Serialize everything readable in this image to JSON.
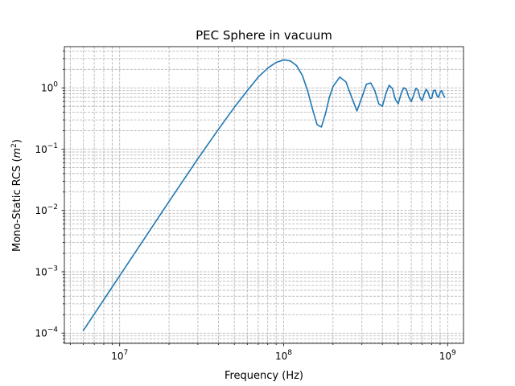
{
  "chart_data": {
    "type": "line",
    "title": "PEC Sphere in vacuum",
    "xlabel": "Frequency (Hz)",
    "ylabel_prefix": "Mono-Static RCS (",
    "ylabel_var": "m",
    "ylabel_sup": "2",
    "ylabel_suffix": ")",
    "xscale": "log",
    "yscale": "log",
    "xlim": [
      4600000.0,
      1250000000.0
    ],
    "ylim": [
      6.8e-05,
      4.7
    ],
    "grid": true,
    "colors": {
      "line": "#1f77b4",
      "grid": "#b0b0b0"
    },
    "x_tick_labels": [
      {
        "value": 10000000.0,
        "base": "10",
        "exp": "7"
      },
      {
        "value": 100000000.0,
        "base": "10",
        "exp": "8"
      },
      {
        "value": 1000000000.0,
        "base": "10",
        "exp": "9"
      }
    ],
    "y_tick_labels": [
      {
        "value": 0.0001,
        "base": "10",
        "exp": "−4"
      },
      {
        "value": 0.001,
        "base": "10",
        "exp": "−3"
      },
      {
        "value": 0.01,
        "base": "10",
        "exp": "−2"
      },
      {
        "value": 0.1,
        "base": "10",
        "exp": "−1"
      },
      {
        "value": 1,
        "base": "10",
        "exp": "0"
      }
    ],
    "series": [
      {
        "x": [
          6000000.0,
          8000000.0,
          10000000.0,
          15000000.0,
          20000000.0,
          30000000.0,
          40000000.0,
          50000000.0,
          60000000.0,
          70000000.0,
          80000000.0,
          90000000.0,
          100000000.0,
          110000000.0,
          120000000.0,
          130000000.0,
          140000000.0,
          150000000.0,
          160000000.0,
          170000000.0,
          180000000.0,
          190000000.0,
          200000000.0,
          220000000.0,
          240000000.0,
          260000000.0,
          280000000.0,
          300000000.0,
          320000000.0,
          340000000.0,
          360000000.0,
          380000000.0,
          400000000.0,
          420000000.0,
          440000000.0,
          460000000.0,
          480000000.0,
          500000000.0,
          520000000.0,
          540000000.0,
          560000000.0,
          580000000.0,
          600000000.0,
          620000000.0,
          640000000.0,
          660000000.0,
          680000000.0,
          700000000.0,
          720000000.0,
          740000000.0,
          760000000.0,
          780000000.0,
          800000000.0,
          820000000.0,
          840000000.0,
          860000000.0,
          880000000.0,
          900000000.0,
          920000000.0,
          940000000.0,
          960000000.0
        ],
        "y": [
          0.00011,
          0.00035,
          0.00086,
          0.0044,
          0.014,
          0.07,
          0.21,
          0.48,
          0.9,
          1.5,
          2.1,
          2.6,
          2.85,
          2.75,
          2.3,
          1.6,
          0.9,
          0.45,
          0.25,
          0.23,
          0.38,
          0.7,
          1.05,
          1.5,
          1.25,
          0.7,
          0.42,
          0.7,
          1.15,
          1.2,
          0.9,
          0.55,
          0.5,
          0.8,
          1.1,
          0.98,
          0.65,
          0.55,
          0.8,
          1.0,
          0.95,
          0.7,
          0.6,
          0.75,
          0.98,
          0.92,
          0.68,
          0.62,
          0.8,
          0.95,
          0.85,
          0.68,
          0.68,
          0.9,
          0.92,
          0.75,
          0.7,
          0.85,
          0.9,
          0.78,
          0.7
        ]
      }
    ]
  }
}
